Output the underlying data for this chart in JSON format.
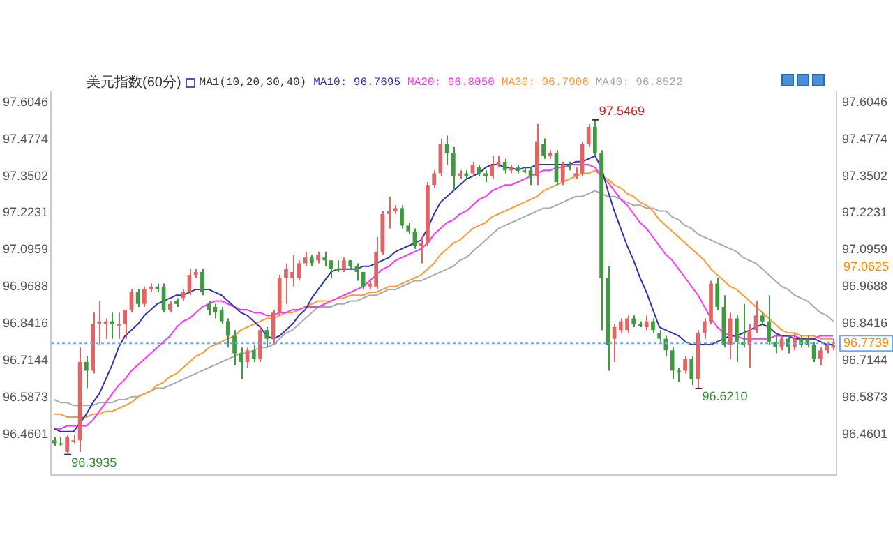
{
  "chart_data": {
    "type": "candlestick",
    "title": "美元指数(60分)",
    "subtitle": "MA1(10,20,30,40)",
    "categories": [
      null,
      null,
      null,
      null,
      null,
      null,
      null,
      null,
      null,
      null,
      null,
      null,
      null,
      null,
      null,
      null,
      null,
      null,
      null,
      null,
      null,
      null,
      null,
      null,
      null,
      null,
      null,
      null,
      null,
      null,
      null,
      null,
      null,
      null,
      null,
      null,
      null,
      null,
      null,
      null,
      null,
      null,
      null,
      null,
      null,
      null,
      null,
      null,
      null,
      null,
      null,
      null,
      null,
      null,
      null,
      null,
      null,
      null,
      null,
      null,
      null,
      null,
      null,
      null,
      null,
      null,
      null,
      null,
      null,
      null,
      null,
      null,
      null,
      null,
      null,
      null,
      null,
      null,
      null,
      null,
      null,
      null,
      null,
      null,
      null,
      null,
      null,
      null,
      null,
      null,
      null,
      null,
      null,
      null,
      null,
      null,
      null,
      null,
      null,
      null,
      null,
      null,
      null,
      null,
      null,
      null,
      null,
      null,
      null,
      null,
      null,
      null,
      null,
      null,
      null,
      null,
      null,
      null,
      null,
      null,
      null,
      null
    ],
    "ohlc": [
      [
        96.44,
        96.45,
        96.42,
        96.43
      ],
      [
        96.43,
        96.45,
        96.42,
        96.43
      ],
      [
        96.4,
        96.46,
        96.3935,
        96.45
      ],
      [
        96.44,
        96.46,
        96.43,
        96.44
      ],
      [
        96.44,
        96.76,
        96.4,
        96.71
      ],
      [
        96.71,
        96.73,
        96.62,
        96.68
      ],
      [
        96.68,
        96.88,
        96.67,
        96.84
      ],
      [
        96.84,
        96.92,
        96.77,
        96.85
      ],
      [
        96.84,
        96.86,
        96.79,
        96.85
      ],
      [
        96.85,
        96.88,
        96.79,
        96.84
      ],
      [
        96.84,
        96.88,
        96.79,
        96.84
      ],
      [
        96.84,
        96.89,
        96.79,
        96.89
      ],
      [
        96.89,
        96.96,
        96.88,
        96.95
      ],
      [
        96.95,
        96.96,
        96.9,
        96.91
      ],
      [
        96.91,
        96.97,
        96.9,
        96.96
      ],
      [
        96.96,
        96.98,
        96.95,
        96.97
      ],
      [
        96.97,
        96.98,
        96.95,
        96.96
      ],
      [
        96.97,
        96.98,
        96.88,
        96.89
      ],
      [
        96.89,
        96.92,
        96.88,
        96.91
      ],
      [
        96.92,
        96.93,
        96.9,
        96.91
      ],
      [
        96.93,
        96.96,
        96.92,
        96.95
      ],
      [
        96.95,
        97.03,
        96.94,
        97.01
      ],
      [
        97.01,
        97.03,
        97.0,
        97.02
      ],
      [
        97.02,
        97.03,
        96.94,
        96.95
      ],
      [
        96.91,
        96.92,
        96.87,
        96.89
      ],
      [
        96.9,
        96.91,
        96.86,
        96.88
      ],
      [
        96.89,
        96.9,
        96.84,
        96.85
      ],
      [
        96.85,
        96.86,
        96.76,
        96.8
      ],
      [
        96.8,
        96.82,
        96.7,
        96.74
      ],
      [
        96.74,
        96.76,
        96.65,
        96.71
      ],
      [
        96.71,
        96.76,
        96.69,
        96.75
      ],
      [
        96.75,
        96.77,
        96.71,
        96.72
      ],
      [
        96.72,
        96.83,
        96.71,
        96.82
      ],
      [
        96.82,
        96.83,
        96.76,
        96.79
      ],
      [
        96.79,
        96.89,
        96.77,
        96.88
      ],
      [
        96.88,
        97.01,
        96.87,
        97.0
      ],
      [
        97.0,
        97.05,
        96.91,
        97.03
      ],
      [
        97.0,
        97.08,
        96.97,
        97.02
      ],
      [
        97.0,
        97.06,
        96.99,
        97.05
      ],
      [
        97.05,
        97.09,
        97.04,
        97.07
      ],
      [
        97.07,
        97.08,
        97.04,
        97.05
      ],
      [
        97.06,
        97.09,
        97.05,
        97.08
      ],
      [
        97.07,
        97.09,
        97.04,
        97.06
      ],
      [
        97.06,
        97.06,
        97.0,
        97.03
      ],
      [
        97.03,
        97.06,
        97.02,
        97.03
      ],
      [
        97.03,
        97.07,
        97.02,
        97.06
      ],
      [
        97.06,
        97.06,
        97.03,
        97.04
      ],
      [
        97.04,
        97.05,
        96.99,
        97.02
      ],
      [
        97.02,
        97.02,
        96.96,
        96.97
      ],
      [
        96.97,
        96.99,
        96.96,
        96.98
      ],
      [
        96.97,
        97.14,
        96.96,
        97.09
      ],
      [
        97.09,
        97.23,
        97.08,
        97.22
      ],
      [
        97.22,
        97.28,
        97.17,
        97.23
      ],
      [
        97.23,
        97.25,
        97.22,
        97.24
      ],
      [
        97.24,
        97.25,
        97.17,
        97.18
      ],
      [
        97.18,
        97.19,
        97.15,
        97.16
      ],
      [
        97.16,
        97.17,
        97.1,
        97.11
      ],
      [
        97.11,
        97.14,
        97.05,
        97.12
      ],
      [
        97.12,
        97.33,
        97.11,
        97.32
      ],
      [
        97.32,
        97.37,
        97.31,
        97.36
      ],
      [
        97.36,
        97.48,
        97.35,
        97.46
      ],
      [
        97.46,
        97.49,
        97.39,
        97.43
      ],
      [
        97.43,
        97.45,
        97.3,
        97.35
      ],
      [
        97.35,
        97.37,
        97.34,
        97.36
      ],
      [
        97.36,
        97.37,
        97.34,
        97.35
      ],
      [
        97.36,
        97.4,
        97.35,
        97.39
      ],
      [
        97.38,
        97.39,
        97.35,
        97.36
      ],
      [
        97.36,
        97.37,
        97.33,
        97.35
      ],
      [
        97.35,
        97.42,
        97.34,
        97.39
      ],
      [
        97.39,
        97.42,
        97.38,
        97.4
      ],
      [
        97.4,
        97.41,
        97.36,
        97.37
      ],
      [
        97.37,
        97.39,
        97.36,
        97.38
      ],
      [
        97.38,
        97.39,
        97.36,
        97.37
      ],
      [
        97.37,
        97.38,
        97.36,
        97.37
      ],
      [
        97.37,
        97.38,
        97.32,
        97.35
      ],
      [
        97.35,
        97.53,
        97.32,
        97.47
      ],
      [
        97.46,
        97.48,
        97.41,
        97.42
      ],
      [
        97.42,
        97.44,
        97.41,
        97.43
      ],
      [
        97.43,
        97.44,
        97.32,
        97.33
      ],
      [
        97.33,
        97.4,
        97.32,
        97.39
      ],
      [
        97.39,
        97.4,
        97.37,
        97.38
      ],
      [
        97.35,
        97.38,
        97.34,
        97.36
      ],
      [
        97.36,
        97.47,
        97.35,
        97.46
      ],
      [
        97.46,
        97.53,
        97.45,
        97.52
      ],
      [
        97.52,
        97.5469,
        97.42,
        97.43
      ],
      [
        97.43,
        97.44,
        96.82,
        97.0
      ],
      [
        97.0,
        97.04,
        96.68,
        96.77
      ],
      [
        96.79,
        96.84,
        96.71,
        96.83
      ],
      [
        96.82,
        96.86,
        96.81,
        96.85
      ],
      [
        96.82,
        96.87,
        96.81,
        96.86
      ],
      [
        96.86,
        96.87,
        96.83,
        96.84
      ],
      [
        96.84,
        96.85,
        96.83,
        96.84
      ],
      [
        96.83,
        96.87,
        96.82,
        96.85
      ],
      [
        96.85,
        96.86,
        96.81,
        96.82
      ],
      [
        96.81,
        96.82,
        96.78,
        96.79
      ],
      [
        96.79,
        96.8,
        96.73,
        96.75
      ],
      [
        96.75,
        96.76,
        96.65,
        96.68
      ],
      [
        96.68,
        96.69,
        96.64,
        96.68
      ],
      [
        96.68,
        96.73,
        96.67,
        96.72
      ],
      [
        96.72,
        96.73,
        96.63,
        96.65
      ],
      [
        96.65,
        96.82,
        96.621,
        96.81
      ],
      [
        96.81,
        96.86,
        96.79,
        96.85
      ],
      [
        96.85,
        96.99,
        96.84,
        96.98
      ],
      [
        96.98,
        97.0,
        96.89,
        96.9
      ],
      [
        96.9,
        96.94,
        96.76,
        96.77
      ],
      [
        96.77,
        96.88,
        96.72,
        96.86
      ],
      [
        96.86,
        96.87,
        96.71,
        96.78
      ],
      [
        96.78,
        96.91,
        96.76,
        96.77
      ],
      [
        96.77,
        96.84,
        96.69,
        96.82
      ],
      [
        96.82,
        96.92,
        96.81,
        96.87
      ],
      [
        96.87,
        96.88,
        96.84,
        96.85
      ],
      [
        96.85,
        96.94,
        96.77,
        96.78
      ],
      [
        96.78,
        96.8,
        96.74,
        96.76
      ],
      [
        96.76,
        96.8,
        96.75,
        96.79
      ],
      [
        96.79,
        96.8,
        96.74,
        96.76
      ],
      [
        96.76,
        96.81,
        96.75,
        96.79
      ],
      [
        96.79,
        96.8,
        96.76,
        96.77
      ],
      [
        96.79,
        96.8,
        96.76,
        96.77
      ],
      [
        96.77,
        96.78,
        96.71,
        96.72
      ],
      [
        96.72,
        96.76,
        96.7,
        96.75
      ],
      [
        96.75,
        96.78,
        96.74,
        96.77
      ],
      [
        96.76,
        96.79,
        96.75,
        96.77
      ]
    ],
    "colors": [
      "#3f9b3f",
      "#3f9b3f",
      "#e06666",
      "#e06666",
      "#e06666",
      "#3f9b3f",
      "#e06666",
      "#e06666",
      "#e06666",
      "#3f9b3f",
      "#e06666",
      "#e06666",
      "#e06666",
      "#3f9b3f",
      "#e06666",
      "#e06666",
      "#3f9b3f",
      "#3f9b3f",
      "#e06666",
      "#3f9b3f",
      "#e06666",
      "#e06666",
      "#e06666",
      "#3f9b3f",
      "#3f9b3f",
      "#3f9b3f",
      "#3f9b3f",
      "#3f9b3f",
      "#3f9b3f",
      "#3f9b3f",
      "#e06666",
      "#3f9b3f",
      "#e06666",
      "#3f9b3f",
      "#e06666",
      "#e06666",
      "#e06666",
      "#e06666",
      "#e06666",
      "#e06666",
      "#3f9b3f",
      "#e06666",
      "#3f9b3f",
      "#3f9b3f",
      "#3f9b3f",
      "#e06666",
      "#3f9b3f",
      "#3f9b3f",
      "#3f9b3f",
      "#e06666",
      "#e06666",
      "#e06666",
      "#e06666",
      "#e06666",
      "#3f9b3f",
      "#3f9b3f",
      "#3f9b3f",
      "#e06666",
      "#e06666",
      "#e06666",
      "#e06666",
      "#3f9b3f",
      "#3f9b3f",
      "#e06666",
      "#3f9b3f",
      "#e06666",
      "#3f9b3f",
      "#3f9b3f",
      "#e06666",
      "#e06666",
      "#3f9b3f",
      "#e06666",
      "#3f9b3f",
      "#3f9b3f",
      "#3f9b3f",
      "#e06666",
      "#3f9b3f",
      "#e06666",
      "#3f9b3f",
      "#e06666",
      "#3f9b3f",
      "#e06666",
      "#e06666",
      "#e06666",
      "#3f9b3f",
      "#3f9b3f",
      "#3f9b3f",
      "#e06666",
      "#e06666",
      "#e06666",
      "#3f9b3f",
      "#3f9b3f",
      "#e06666",
      "#3f9b3f",
      "#3f9b3f",
      "#3f9b3f",
      "#3f9b3f",
      "#3f9b3f",
      "#e06666",
      "#3f9b3f",
      "#e06666",
      "#e06666",
      "#e06666",
      "#3f9b3f",
      "#3f9b3f",
      "#e06666",
      "#3f9b3f",
      "#3f9b3f",
      "#e06666",
      "#e06666",
      "#3f9b3f",
      "#3f9b3f",
      "#3f9b3f",
      "#e06666",
      "#3f9b3f",
      "#e06666",
      "#3f9b3f",
      "#3f9b3f",
      "#3f9b3f",
      "#e06666",
      "#e06666",
      "#e06666"
    ],
    "series": [
      {
        "type": "line",
        "name": "MA10: 96.7695",
        "color": "#3333aa",
        "values": [
          96.48,
          96.47,
          96.47,
          96.47,
          96.5,
          96.53,
          96.57,
          96.6,
          96.65,
          96.7,
          96.76,
          96.8,
          96.82,
          96.84,
          96.87,
          96.89,
          96.91,
          96.92,
          96.93,
          96.94,
          96.94,
          96.95,
          96.96,
          96.96,
          96.96,
          96.95,
          96.94,
          96.92,
          96.9,
          96.88,
          96.87,
          96.85,
          96.83,
          96.8,
          96.79,
          96.8,
          96.82,
          96.84,
          96.87,
          96.89,
          96.93,
          96.96,
          96.99,
          97.02,
          97.03,
          97.03,
          97.03,
          97.03,
          97.04,
          97.04,
          97.05,
          97.06,
          97.07,
          97.09,
          97.1,
          97.11,
          97.12,
          97.13,
          97.17,
          97.22,
          97.26,
          97.28,
          97.3,
          97.32,
          97.34,
          97.35,
          97.36,
          97.38,
          97.39,
          97.39,
          97.38,
          97.38,
          97.37,
          97.38,
          97.38,
          97.39,
          97.39,
          97.39,
          97.39,
          97.39,
          97.39,
          97.4,
          97.4,
          97.41,
          97.42,
          97.38,
          97.3,
          97.23,
          97.17,
          97.11,
          97.06,
          97.0,
          96.95,
          96.89,
          96.83,
          96.82,
          96.81,
          96.8,
          96.78,
          96.77,
          96.77,
          96.77,
          96.77,
          96.78,
          96.79,
          96.8,
          96.8,
          96.81,
          96.82,
          96.83,
          96.84,
          96.83,
          96.81,
          96.8,
          96.8,
          96.79,
          96.79,
          96.79,
          96.79,
          96.78,
          96.77,
          96.77
        ]
      },
      {
        "type": "line",
        "name": "MA20: 96.8050",
        "color": "#ff33ff",
        "values": [
          96.48,
          96.48,
          96.49,
          96.49,
          96.49,
          96.49,
          96.51,
          96.54,
          96.57,
          96.6,
          96.63,
          96.65,
          96.68,
          96.7,
          96.72,
          96.74,
          96.76,
          96.78,
          96.8,
          96.83,
          96.85,
          96.86,
          96.88,
          96.9,
          96.91,
          96.92,
          96.92,
          96.91,
          96.9,
          96.89,
          96.89,
          96.88,
          96.88,
          96.87,
          96.87,
          96.88,
          96.88,
          96.89,
          96.89,
          96.9,
          96.9,
          96.9,
          96.91,
          96.92,
          96.93,
          96.94,
          96.95,
          96.96,
          96.97,
          96.99,
          97.01,
          97.03,
          97.04,
          97.06,
          97.07,
          97.08,
          97.09,
          97.1,
          97.12,
          97.15,
          97.17,
          97.19,
          97.2,
          97.22,
          97.23,
          97.25,
          97.27,
          97.28,
          97.3,
          97.31,
          97.32,
          97.32,
          97.33,
          97.34,
          97.35,
          97.36,
          97.37,
          97.37,
          97.38,
          97.38,
          97.39,
          97.39,
          97.39,
          97.39,
          97.38,
          97.35,
          97.33,
          97.3,
          97.27,
          97.25,
          97.22,
          97.19,
          97.17,
          97.14,
          97.11,
          97.08,
          97.06,
          97.03,
          97.0,
          96.97,
          96.94,
          96.9,
          96.86,
          96.83,
          96.81,
          96.8,
          96.8,
          96.79,
          96.79,
          96.79,
          96.79,
          96.79,
          96.8,
          96.8,
          96.8,
          96.8,
          96.79,
          96.79,
          96.79,
          96.8,
          96.8,
          96.8
        ]
      },
      {
        "type": "line",
        "name": "MA30: 96.7906",
        "color": "#ff9933",
        "values": [
          96.53,
          96.53,
          96.52,
          96.52,
          96.52,
          96.52,
          96.53,
          96.53,
          96.54,
          96.54,
          96.55,
          96.56,
          96.57,
          96.59,
          96.6,
          96.61,
          96.63,
          96.64,
          96.66,
          96.67,
          96.69,
          96.71,
          96.73,
          96.74,
          96.76,
          96.77,
          96.78,
          96.79,
          96.8,
          96.82,
          96.83,
          96.84,
          96.85,
          96.86,
          96.86,
          96.87,
          96.88,
          96.88,
          96.89,
          96.9,
          96.91,
          96.92,
          96.92,
          96.92,
          96.93,
          96.93,
          96.94,
          96.94,
          96.94,
          96.95,
          96.95,
          96.96,
          96.97,
          96.97,
          96.98,
          96.99,
          97.0,
          97.01,
          97.03,
          97.05,
          97.08,
          97.1,
          97.12,
          97.13,
          97.15,
          97.17,
          97.18,
          97.19,
          97.21,
          97.22,
          97.23,
          97.24,
          97.25,
          97.26,
          97.27,
          97.28,
          97.3,
          97.31,
          97.32,
          97.33,
          97.34,
          97.35,
          97.36,
          97.36,
          97.37,
          97.35,
          97.34,
          97.32,
          97.31,
          97.29,
          97.28,
          97.26,
          97.25,
          97.23,
          97.2,
          97.18,
          97.16,
          97.14,
          97.12,
          97.1,
          97.08,
          97.06,
          97.03,
          97.01,
          96.99,
          96.97,
          96.96,
          96.94,
          96.92,
          96.9,
          96.88,
          96.86,
          96.84,
          96.82,
          96.81,
          96.81,
          96.8,
          96.8,
          96.8,
          96.79,
          96.79,
          96.79
        ]
      },
      {
        "type": "line",
        "name": "MA40: 96.8522",
        "color": "#aaaaaa",
        "values": [
          96.58,
          96.57,
          96.57,
          96.56,
          96.56,
          96.56,
          96.56,
          96.57,
          96.57,
          96.57,
          96.58,
          96.58,
          96.59,
          96.59,
          96.6,
          96.61,
          96.62,
          96.62,
          96.63,
          96.64,
          96.65,
          96.66,
          96.67,
          96.68,
          96.69,
          96.7,
          96.71,
          96.72,
          96.73,
          96.74,
          96.74,
          96.75,
          96.76,
          96.76,
          96.77,
          96.79,
          96.81,
          96.82,
          96.84,
          96.86,
          96.88,
          96.9,
          96.9,
          96.9,
          96.91,
          96.91,
          96.92,
          96.92,
          96.93,
          96.94,
          96.94,
          96.95,
          96.96,
          96.96,
          96.97,
          96.98,
          96.99,
          96.99,
          97.0,
          97.01,
          97.02,
          97.03,
          97.04,
          97.06,
          97.07,
          97.09,
          97.11,
          97.13,
          97.15,
          97.17,
          97.18,
          97.19,
          97.2,
          97.21,
          97.22,
          97.23,
          97.24,
          97.24,
          97.25,
          97.26,
          97.27,
          97.28,
          97.28,
          97.29,
          97.3,
          97.29,
          97.28,
          97.28,
          97.27,
          97.26,
          97.25,
          97.25,
          97.24,
          97.24,
          97.23,
          97.23,
          97.21,
          97.2,
          97.18,
          97.17,
          97.15,
          97.14,
          97.13,
          97.12,
          97.11,
          97.1,
          97.09,
          97.07,
          97.06,
          97.05,
          97.03,
          97.01,
          96.99,
          96.97,
          96.96,
          96.94,
          96.93,
          96.92,
          96.9,
          96.88,
          96.87,
          96.85
        ]
      }
    ],
    "ylim": [
      96.32,
      97.64
    ],
    "yticks": [
      96.4601,
      96.5873,
      96.7144,
      96.8416,
      96.9688,
      97.0959,
      97.2231,
      97.3502,
      97.4774,
      97.6046
    ],
    "y2lim": [
      96.32,
      97.64
    ],
    "y2ticks": [
      96.4601,
      96.5873,
      96.7144,
      96.8416,
      96.9688,
      97.0959,
      97.2231,
      97.3502,
      97.4774,
      97.6046
    ],
    "ref_lines": [
      {
        "axis": "y",
        "value": 96.7739,
        "label": "96.7739",
        "color": "#66aaff",
        "line_style": "dotted"
      }
    ],
    "annotations": [
      "97.5469",
      "96.3935",
      "96.6210",
      "97.0625"
    ],
    "legend": "top",
    "tick_labels": "y",
    "grid": false,
    "marker": "none",
    "line_style": "solid"
  }
}
